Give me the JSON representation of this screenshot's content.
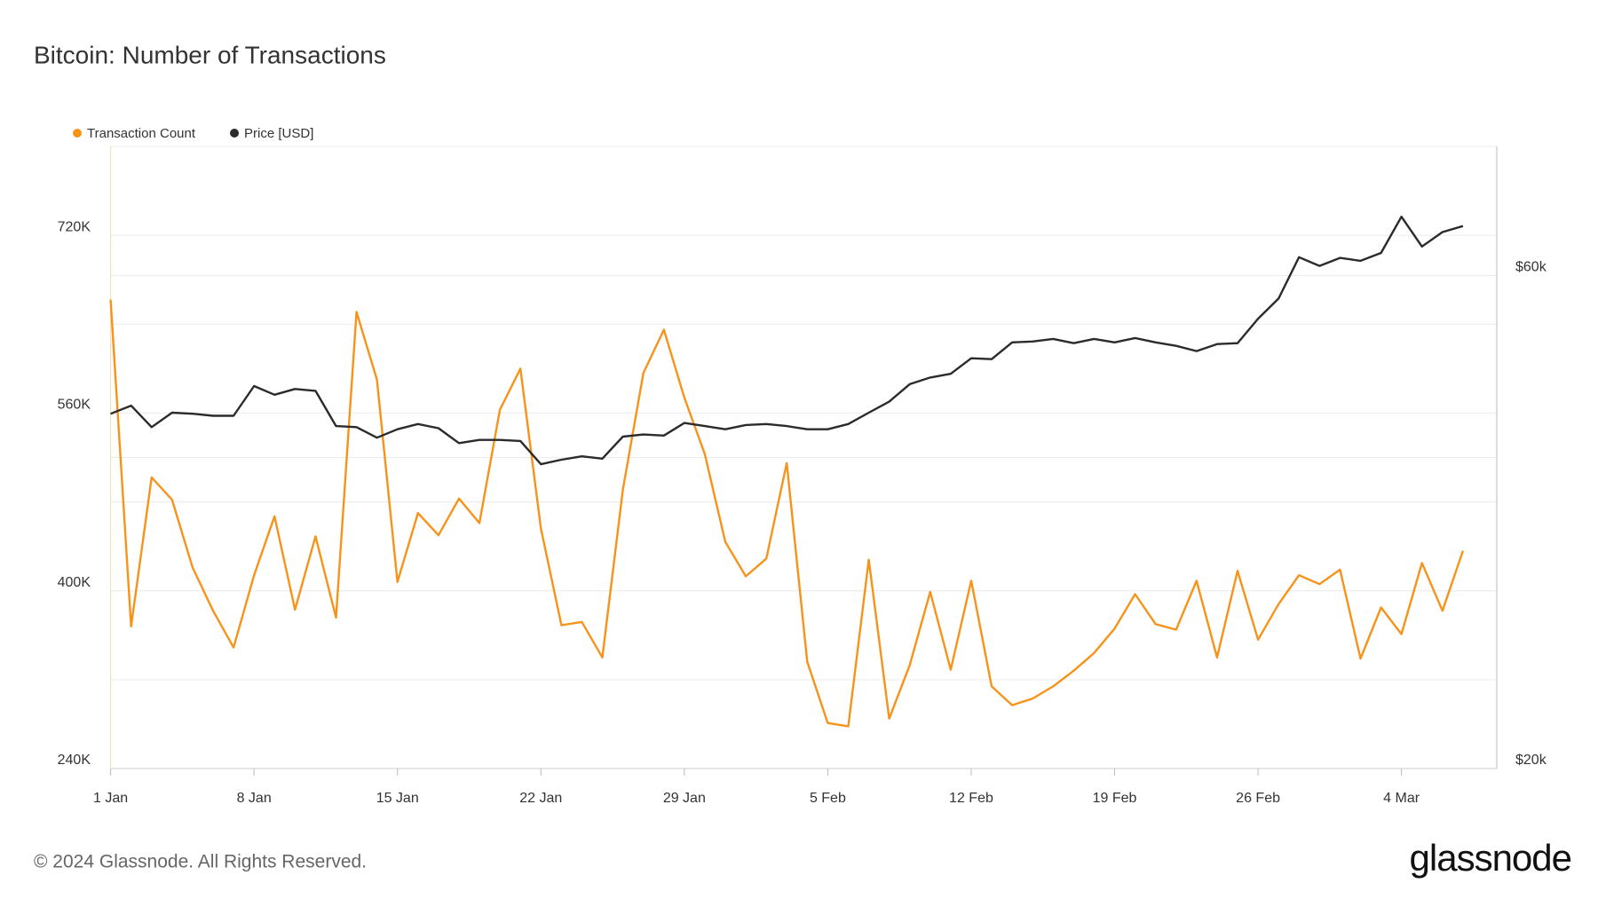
{
  "chart_data": {
    "type": "line",
    "title": "Bitcoin: Number of Transactions",
    "categories": [
      "1 Jan",
      null,
      null,
      null,
      null,
      null,
      null,
      "8 Jan",
      null,
      null,
      null,
      null,
      null,
      null,
      "15 Jan",
      null,
      null,
      null,
      null,
      null,
      null,
      "22 Jan",
      null,
      null,
      null,
      null,
      null,
      null,
      "29 Jan",
      null,
      null,
      null,
      null,
      null,
      null,
      "5 Feb",
      null,
      null,
      null,
      null,
      null,
      null,
      "12 Feb",
      null,
      null,
      null,
      null,
      null,
      null,
      "19 Feb",
      null,
      null,
      null,
      null,
      null,
      null,
      "26 Feb",
      null,
      null,
      null,
      null,
      null,
      null,
      "4 Mar",
      null,
      null,
      null
    ],
    "series": [
      {
        "name": "Transaction Count",
        "color": "#f7931a",
        "axis": "y",
        "values": [
          662000,
          368000,
          502000,
          482000,
          421000,
          382000,
          349000,
          414000,
          467000,
          383000,
          449000,
          376000,
          651000,
          590000,
          408000,
          470000,
          450000,
          483000,
          461000,
          563000,
          600000,
          456000,
          369000,
          372000,
          340000,
          491000,
          596000,
          635000,
          574000,
          523000,
          444000,
          413000,
          429000,
          515000,
          336000,
          281000,
          278000,
          428000,
          285000,
          333000,
          399000,
          329000,
          409000,
          314000,
          297000,
          303000,
          314000,
          328000,
          344000,
          366000,
          397000,
          370000,
          365000,
          409000,
          340000,
          418000,
          356000,
          388000,
          414000,
          406000,
          419000,
          339000,
          385000,
          361000,
          425000,
          382000,
          436000
        ]
      },
      {
        "name": "Price [USD]",
        "color": "#2b2b2b",
        "axis": "y2",
        "values": [
          44100,
          44900,
          42800,
          44200,
          44100,
          43900,
          43900,
          46900,
          46000,
          46600,
          46400,
          42900,
          42800,
          41800,
          42600,
          43100,
          42700,
          41300,
          41600,
          41600,
          41500,
          39400,
          39800,
          40100,
          39900,
          41900,
          42100,
          42000,
          43200,
          42900,
          42600,
          43000,
          43100,
          42900,
          42600,
          42600,
          43100,
          44200,
          45300,
          47100,
          47800,
          48200,
          49900,
          49800,
          51700,
          51800,
          52100,
          51600,
          52100,
          51700,
          52200,
          51700,
          51300,
          50700,
          51500,
          51600,
          54500,
          57000,
          62500,
          61300,
          62400,
          62000,
          63100,
          68400,
          64000,
          66100,
          67000
        ]
      }
    ],
    "ylim": [
      240000,
      800000
    ],
    "yticks": [
      {
        "value": 240000,
        "label": "240K"
      },
      {
        "value": 400000,
        "label": "400K"
      },
      {
        "value": 560000,
        "label": "560K"
      },
      {
        "value": 720000,
        "label": "720K"
      }
    ],
    "yminorticks": [
      320000,
      480000,
      640000
    ],
    "y2lim": [
      20000,
      80000
    ],
    "y2scale": "log",
    "y2ticks": [
      {
        "value": 20000,
        "label": "$20k"
      },
      {
        "value": 60000,
        "label": "$60k"
      }
    ],
    "y2minorticks": [
      40000
    ],
    "grid": true,
    "legend": "top-left"
  },
  "footer": {
    "copyright": "© 2024 Glassnode. All Rights Reserved.",
    "brand": "glassnode"
  }
}
